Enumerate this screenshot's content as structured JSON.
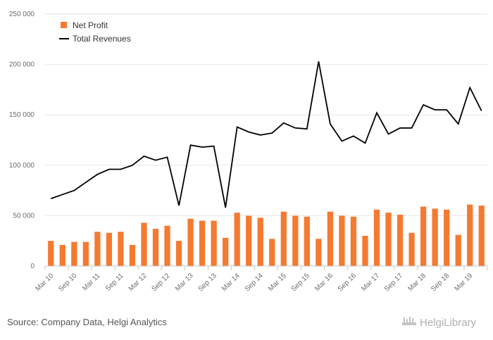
{
  "chart_data": {
    "type": "bar+line",
    "title": "",
    "xlabel": "",
    "ylabel": "",
    "ylim": [
      0,
      250000
    ],
    "yticks": [
      0,
      50000,
      100000,
      150000,
      200000,
      250000
    ],
    "ytick_labels": [
      "0",
      "50 000",
      "100 000",
      "150 000",
      "200 000",
      "250 000"
    ],
    "categories": [
      "Mar 10",
      "Jun 10",
      "Sep 10",
      "Dec 10",
      "Mar 11",
      "Jun 11",
      "Sep 11",
      "Dec 11",
      "Mar 12",
      "Jun 12",
      "Sep 12",
      "Dec 12",
      "Mar 13",
      "Jun 13",
      "Sep 13",
      "Dec 13",
      "Mar 14",
      "Jun 14",
      "Sep 14",
      "Dec 14",
      "Mar 15",
      "Jun 15",
      "Sep 15",
      "Dec 15",
      "Mar 16",
      "Jun 16",
      "Sep 16",
      "Dec 16",
      "Mar 17",
      "Jun 17",
      "Sep 17",
      "Dec 17",
      "Mar 18",
      "Jun 18",
      "Sep 18",
      "Dec 18",
      "Mar 19",
      "Jun 19"
    ],
    "xtick_labels": [
      "Mar 10",
      "Sep 10",
      "Mar 11",
      "Sep 11",
      "Mar 12",
      "Sep 12",
      "Mar 13",
      "Sep 13",
      "Mar 14",
      "Sep 14",
      "Mar 15",
      "Sep 15",
      "Mar 16",
      "Sep 16",
      "Mar 17",
      "Sep 17",
      "Mar 18",
      "Sep 18",
      "Mar 19"
    ],
    "series": [
      {
        "name": "Net Profit",
        "kind": "bar",
        "color": "#f47a31",
        "values": [
          25000,
          21000,
          24000,
          24000,
          34000,
          33000,
          34000,
          21000,
          43000,
          37000,
          40000,
          25000,
          47000,
          45000,
          45000,
          28000,
          53000,
          50000,
          48000,
          27000,
          54000,
          50000,
          49000,
          27000,
          54000,
          50000,
          49000,
          30000,
          56000,
          53000,
          51000,
          33000,
          59000,
          57000,
          56000,
          31000,
          61000,
          60000
        ]
      },
      {
        "name": "Total Revenues",
        "kind": "line",
        "color": "#000000",
        "values": [
          67000,
          71000,
          75000,
          83000,
          91000,
          96000,
          96000,
          100000,
          109000,
          105000,
          108000,
          60000,
          120000,
          118000,
          119000,
          58000,
          138000,
          133000,
          130000,
          132000,
          142000,
          137000,
          136000,
          203000,
          141000,
          124000,
          129000,
          122000,
          152000,
          131000,
          137000,
          137000,
          160000,
          155000,
          155000,
          141000,
          177000,
          154000
        ]
      }
    ],
    "legend": [
      "Net Profit",
      "Total Revenues"
    ],
    "legend_position": "top-left",
    "grid": true
  },
  "footer": {
    "source": "Source: Company Data, Helgi Analytics",
    "brand": "HelgiLibrary"
  }
}
